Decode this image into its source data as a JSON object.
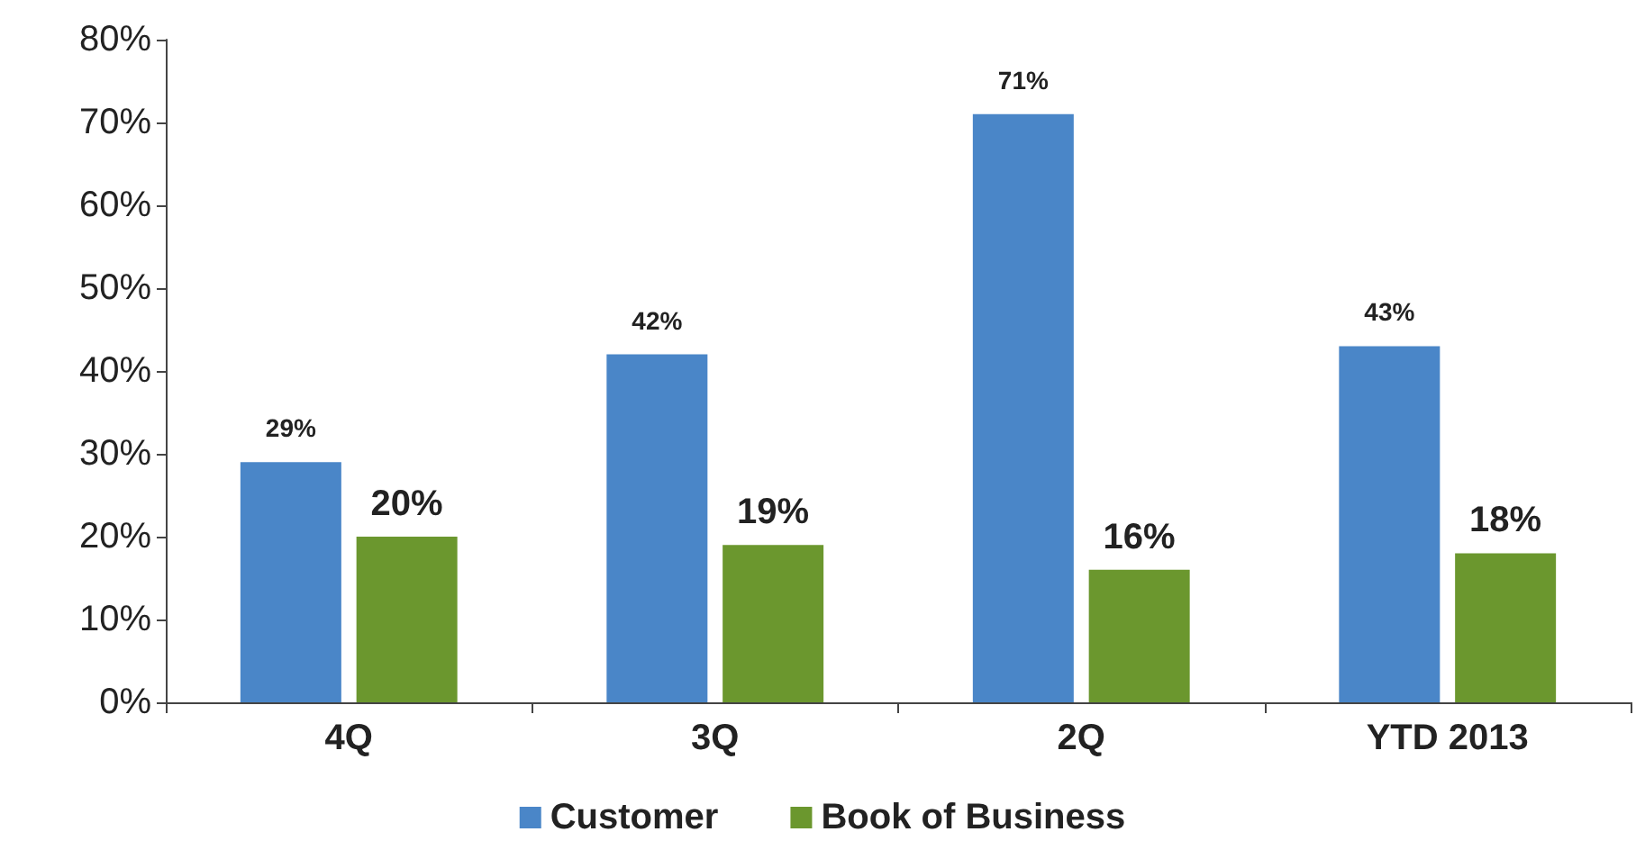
{
  "chart_data": {
    "type": "bar",
    "categories": [
      "4Q",
      "3Q",
      "2Q",
      "YTD 2013"
    ],
    "series": [
      {
        "name": "Customer",
        "color": "#4a86c8",
        "values": [
          29,
          42,
          71,
          43
        ],
        "value_labels": [
          "29%",
          "42%",
          "71%",
          "43%"
        ]
      },
      {
        "name": "Book of Business",
        "color": "#6b972e",
        "values": [
          20,
          19,
          16,
          18
        ],
        "value_labels": [
          "20%",
          "19%",
          "16%",
          "18%"
        ]
      }
    ],
    "ylim": [
      0,
      80
    ],
    "yticks": [
      {
        "value": 0,
        "label": "0%"
      },
      {
        "value": 10,
        "label": "10%"
      },
      {
        "value": 20,
        "label": "20%"
      },
      {
        "value": 30,
        "label": "30%"
      },
      {
        "value": 40,
        "label": "40%"
      },
      {
        "value": 50,
        "label": "50%"
      },
      {
        "value": 60,
        "label": "60%"
      },
      {
        "value": 70,
        "label": "70%"
      },
      {
        "value": 80,
        "label": "80%"
      }
    ],
    "grid": false,
    "legend": "bottom"
  }
}
